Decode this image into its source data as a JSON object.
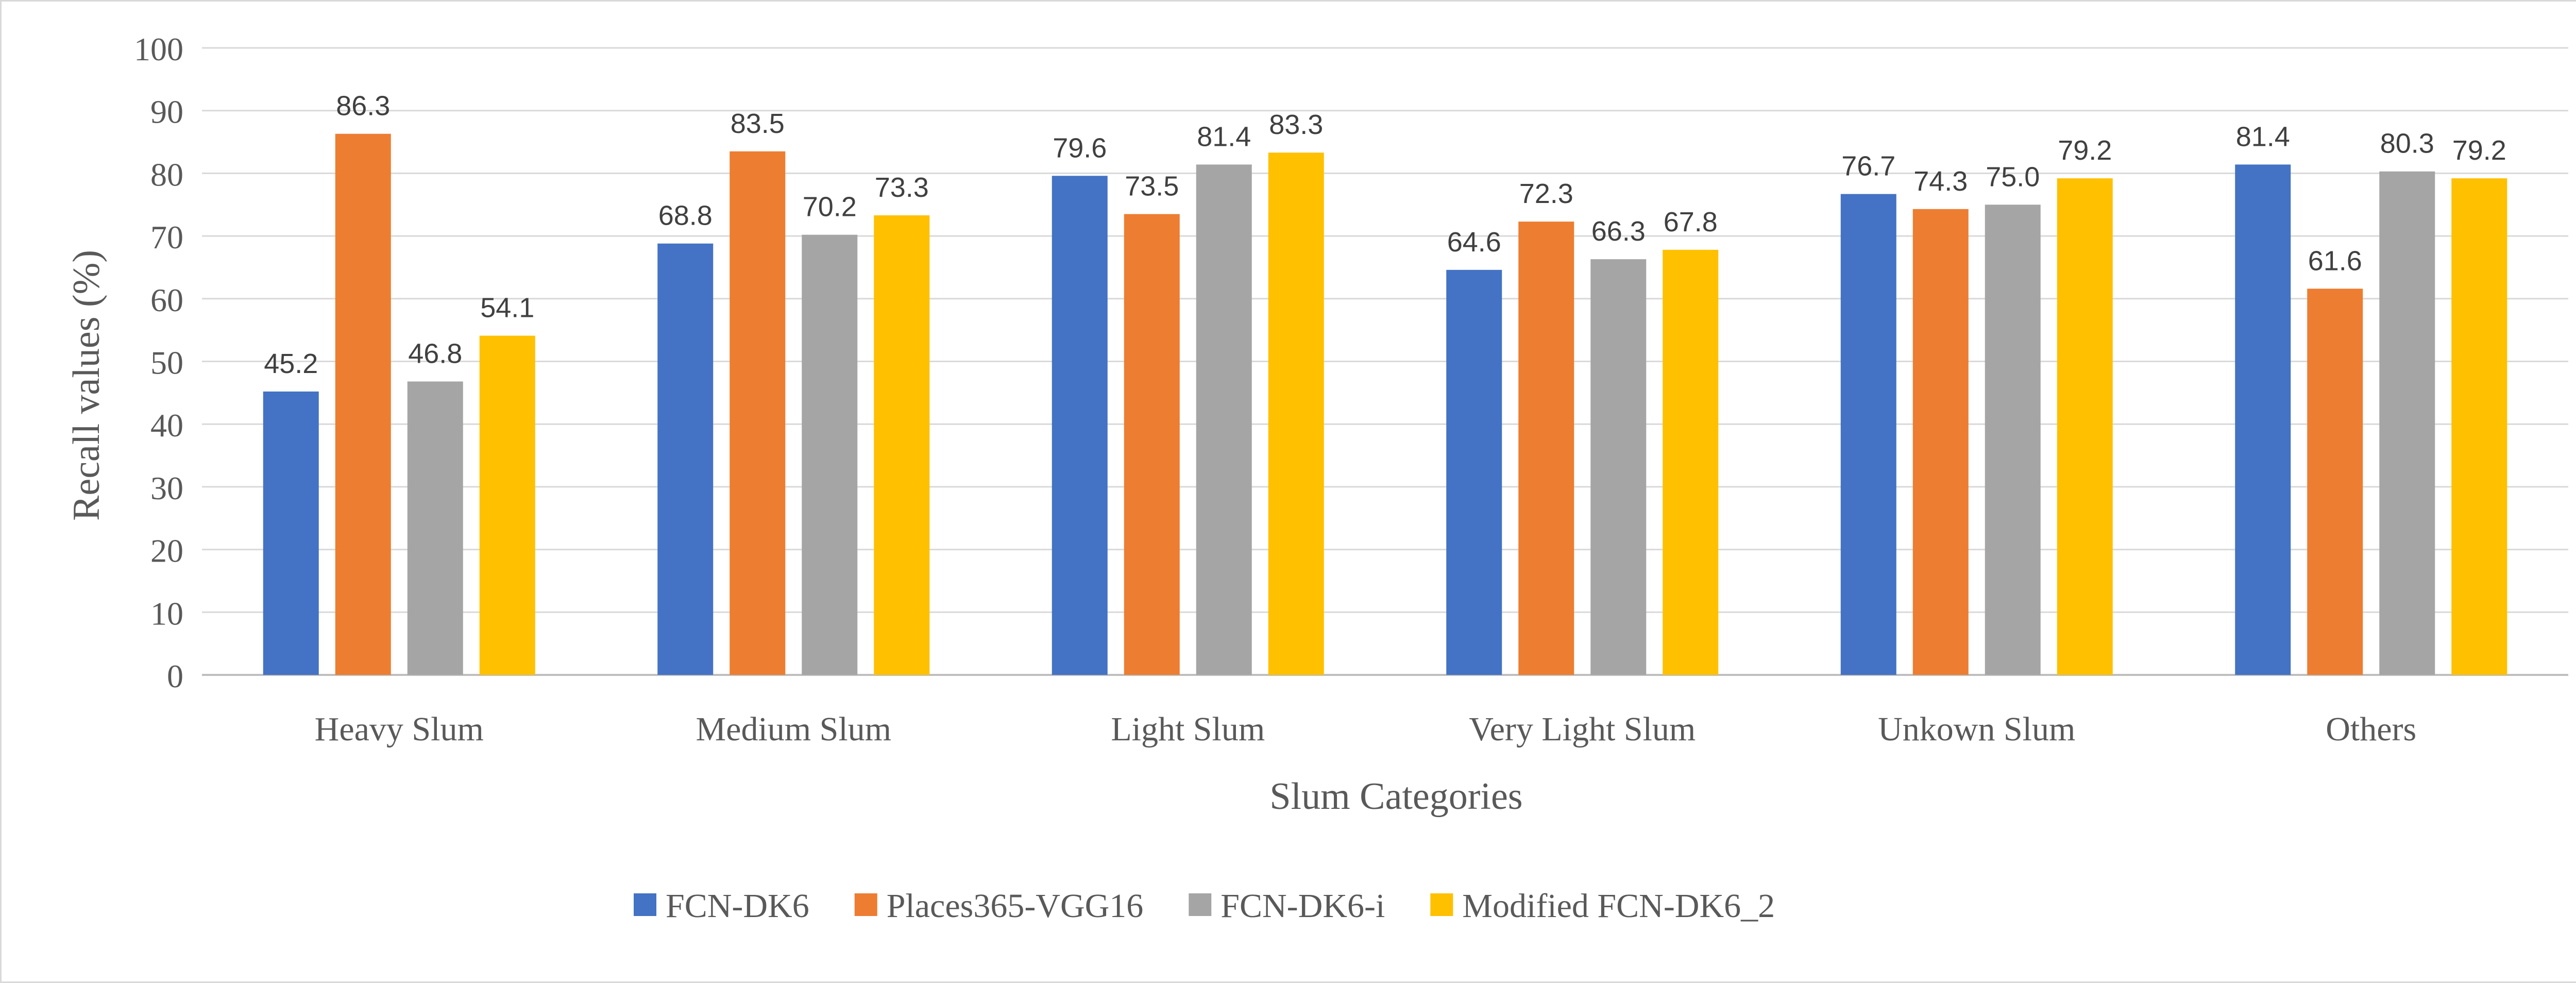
{
  "chart_data": {
    "type": "bar",
    "title": "",
    "xlabel": "Slum Categories",
    "ylabel": "Recall values (%)",
    "ylim": [
      0,
      100
    ],
    "yticks": [
      0,
      10,
      20,
      30,
      40,
      50,
      60,
      70,
      80,
      90,
      100
    ],
    "grid": true,
    "legend_position": "bottom",
    "categories": [
      "Heavy Slum",
      "Medium Slum",
      "Light Slum",
      "Very Light Slum",
      "Unkown Slum",
      "Others"
    ],
    "series": [
      {
        "name": "FCN-DK6",
        "color": "#4472c4",
        "values": [
          45.2,
          68.8,
          79.6,
          64.6,
          76.7,
          81.4
        ],
        "labels": [
          "45.2",
          "68.8",
          "79.6",
          "64.6",
          "76.7",
          "81.4"
        ]
      },
      {
        "name": "Places365-VGG16",
        "color": "#ed7d31",
        "values": [
          86.3,
          83.5,
          73.5,
          72.3,
          74.3,
          61.6
        ],
        "labels": [
          "86.3",
          "83.5",
          "73.5",
          "72.3",
          "74.3",
          "61.6"
        ]
      },
      {
        "name": "FCN-DK6-i",
        "color": "#a5a5a5",
        "values": [
          46.8,
          70.2,
          81.4,
          66.3,
          75.0,
          80.3
        ],
        "labels": [
          "46.8",
          "70.2",
          "81.4",
          "66.3",
          "75.0",
          "80.3"
        ]
      },
      {
        "name": "Modified FCN-DK6_2",
        "color": "#ffc000",
        "values": [
          54.1,
          73.3,
          83.3,
          67.8,
          79.2,
          79.2
        ],
        "labels": [
          "54.1",
          "73.3",
          "83.3",
          "67.8",
          "79.2",
          "79.2"
        ]
      }
    ]
  }
}
